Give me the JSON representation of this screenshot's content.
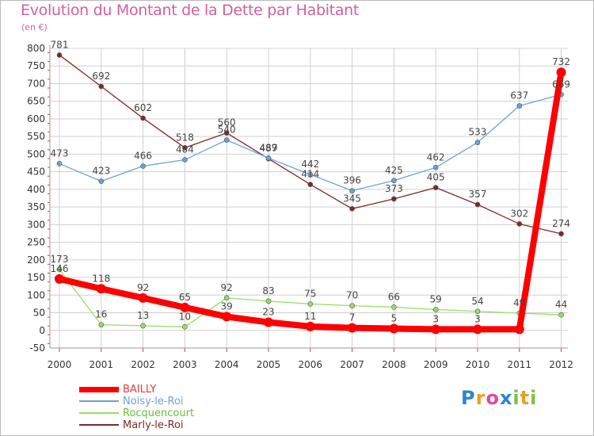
{
  "header": {
    "title": "Evolution du Montant de la Dette par Habitant",
    "unit": "(en €)"
  },
  "colors": {
    "title": "#d05fa1",
    "axis_text": "#333333",
    "grid": "#d0d0d0",
    "tick_marks": "#e03a3a"
  },
  "chart_data": {
    "type": "line",
    "title": "Evolution du Montant de la Dette par Habitant",
    "subtitle": "(en €)",
    "xlabel": "",
    "ylabel": "",
    "x": [
      "2000",
      "2001",
      "2002",
      "2003",
      "2004",
      "2005",
      "2006",
      "2007",
      "2008",
      "2009",
      "2010",
      "2011",
      "2012"
    ],
    "ylim": [
      -50,
      800
    ],
    "yticks": [
      -50,
      0,
      50,
      100,
      150,
      200,
      250,
      300,
      350,
      400,
      450,
      500,
      550,
      600,
      650,
      700,
      750,
      800
    ],
    "grid": true,
    "legend_position": "bottom-left",
    "series": [
      {
        "name": "BAILLY",
        "color": "#ff0000",
        "values": [
          146,
          118,
          92,
          65,
          39,
          23,
          11,
          7,
          5,
          3,
          3,
          3,
          732
        ],
        "labels": [
          "146",
          "118",
          "92",
          "65",
          "39",
          "23",
          "11",
          "7",
          "5",
          "3",
          "3",
          "",
          "732"
        ]
      },
      {
        "name": "Noisy-le-Roi",
        "color": "#6aa3d6",
        "values": [
          473,
          423,
          466,
          484,
          540,
          489,
          442,
          396,
          425,
          462,
          533,
          637,
          669
        ],
        "labels": [
          "473",
          "423",
          "466",
          "484",
          "540",
          "489",
          "442",
          "396",
          "425",
          "462",
          "533",
          "637",
          "669"
        ]
      },
      {
        "name": "Rocquencourt",
        "color": "#99dd66",
        "values": [
          173,
          16,
          13,
          10,
          92,
          83,
          75,
          70,
          66,
          59,
          54,
          49,
          44
        ],
        "labels": [
          "173",
          "16",
          "13",
          "10",
          "92",
          "83",
          "75",
          "70",
          "66",
          "59",
          "54",
          "49",
          "44"
        ]
      },
      {
        "name": "Marly-le-Roi",
        "color": "#7b2a2a",
        "values": [
          781,
          692,
          602,
          518,
          560,
          487,
          414,
          345,
          373,
          405,
          357,
          302,
          274
        ],
        "labels": [
          "781",
          "692",
          "602",
          "518",
          "560",
          "487",
          "414",
          "345",
          "373",
          "405",
          "357",
          "302",
          "274"
        ]
      }
    ]
  },
  "logo": {
    "letters": [
      {
        "ch": "P",
        "color": "#2e86c8"
      },
      {
        "ch": "r",
        "color": "#e8a020"
      },
      {
        "ch": "o",
        "color": "#e04a9a"
      },
      {
        "ch": "x",
        "color": "#2e86c8"
      },
      {
        "ch": "i",
        "color": "#7cc242"
      },
      {
        "ch": "t",
        "color": "#e8a020"
      },
      {
        "ch": "i",
        "color": "#7cc242"
      }
    ]
  }
}
